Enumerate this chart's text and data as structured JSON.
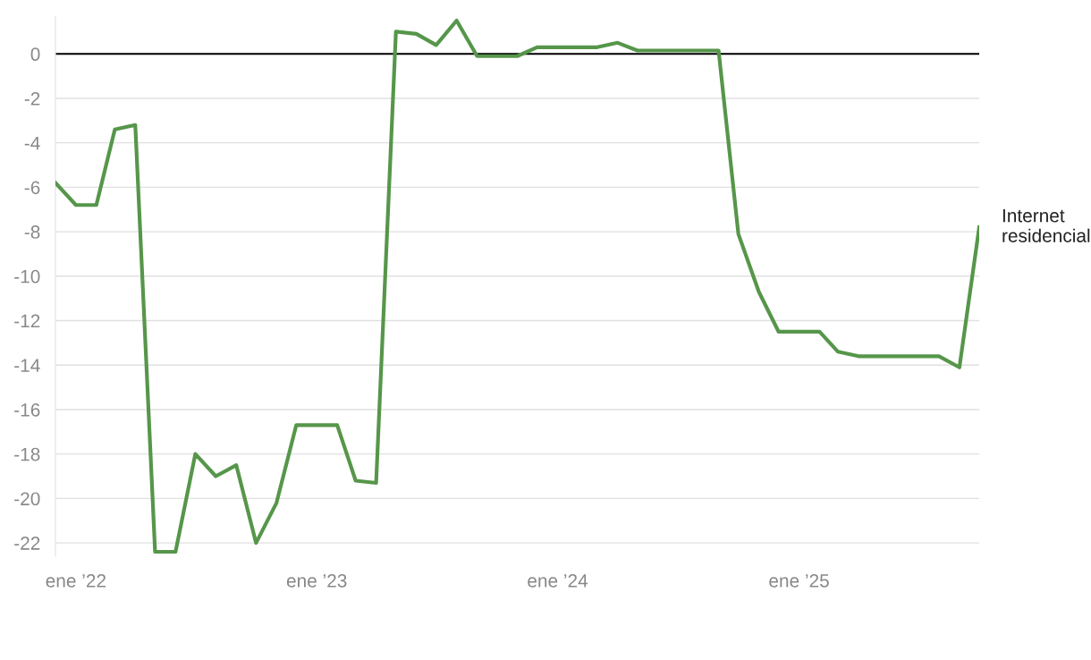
{
  "chart_data": {
    "type": "line",
    "x": [
      "2021-12",
      "2022-01",
      "2022-02",
      "2022-03",
      "2022-04",
      "2022-05",
      "2022-06",
      "2022-07",
      "2022-08",
      "2022-09",
      "2022-10",
      "2022-11",
      "2022-12",
      "2023-01",
      "2023-02",
      "2023-03",
      "2023-04",
      "2023-05",
      "2023-06",
      "2023-07",
      "2023-08",
      "2023-09",
      "2023-10",
      "2023-11",
      "2023-12",
      "2024-01",
      "2024-02",
      "2024-03",
      "2024-04",
      "2024-05",
      "2024-06",
      "2024-07",
      "2024-08",
      "2024-09",
      "2024-10",
      "2024-11",
      "2024-12",
      "2025-01",
      "2025-02",
      "2025-03",
      "2025-04",
      "2025-05",
      "2025-06",
      "2025-07",
      "2025-08",
      "2025-09",
      "2025-10"
    ],
    "series": [
      {
        "name": "Internet residencial",
        "color": "#56964a",
        "values": [
          -5.8,
          -6.8,
          -6.8,
          -3.4,
          -3.2,
          -22.4,
          -22.4,
          -18.0,
          -19.0,
          -18.5,
          -22.0,
          -20.2,
          -16.7,
          -16.7,
          -16.7,
          -19.2,
          -19.3,
          1.0,
          0.9,
          0.4,
          1.5,
          -0.1,
          -0.1,
          -0.1,
          0.3,
          0.3,
          0.3,
          0.3,
          0.5,
          0.15,
          0.15,
          0.15,
          0.15,
          0.15,
          -8.1,
          -10.7,
          -12.5,
          -12.5,
          -12.5,
          -13.4,
          -13.6,
          -13.6,
          -13.6,
          -13.6,
          -13.6,
          -14.1,
          -7.8
        ]
      }
    ],
    "xlim": [
      "2021-12",
      "2025-10"
    ],
    "xticks": [
      {
        "value": "2022-01",
        "label": "ene ’22"
      },
      {
        "value": "2023-01",
        "label": "ene ’23"
      },
      {
        "value": "2024-01",
        "label": "ene ’24"
      },
      {
        "value": "2025-01",
        "label": "ene ’25"
      }
    ],
    "yticks": [
      0,
      -2,
      -4,
      -6,
      -8,
      -10,
      -12,
      -14,
      -16,
      -18,
      -20,
      -22
    ],
    "ylim": [
      -22.6,
      1.7
    ],
    "grid": "y",
    "legend": false,
    "ref_lines": [
      {
        "axis": "y",
        "value": 0,
        "label": null,
        "color": "#000000"
      }
    ]
  }
}
